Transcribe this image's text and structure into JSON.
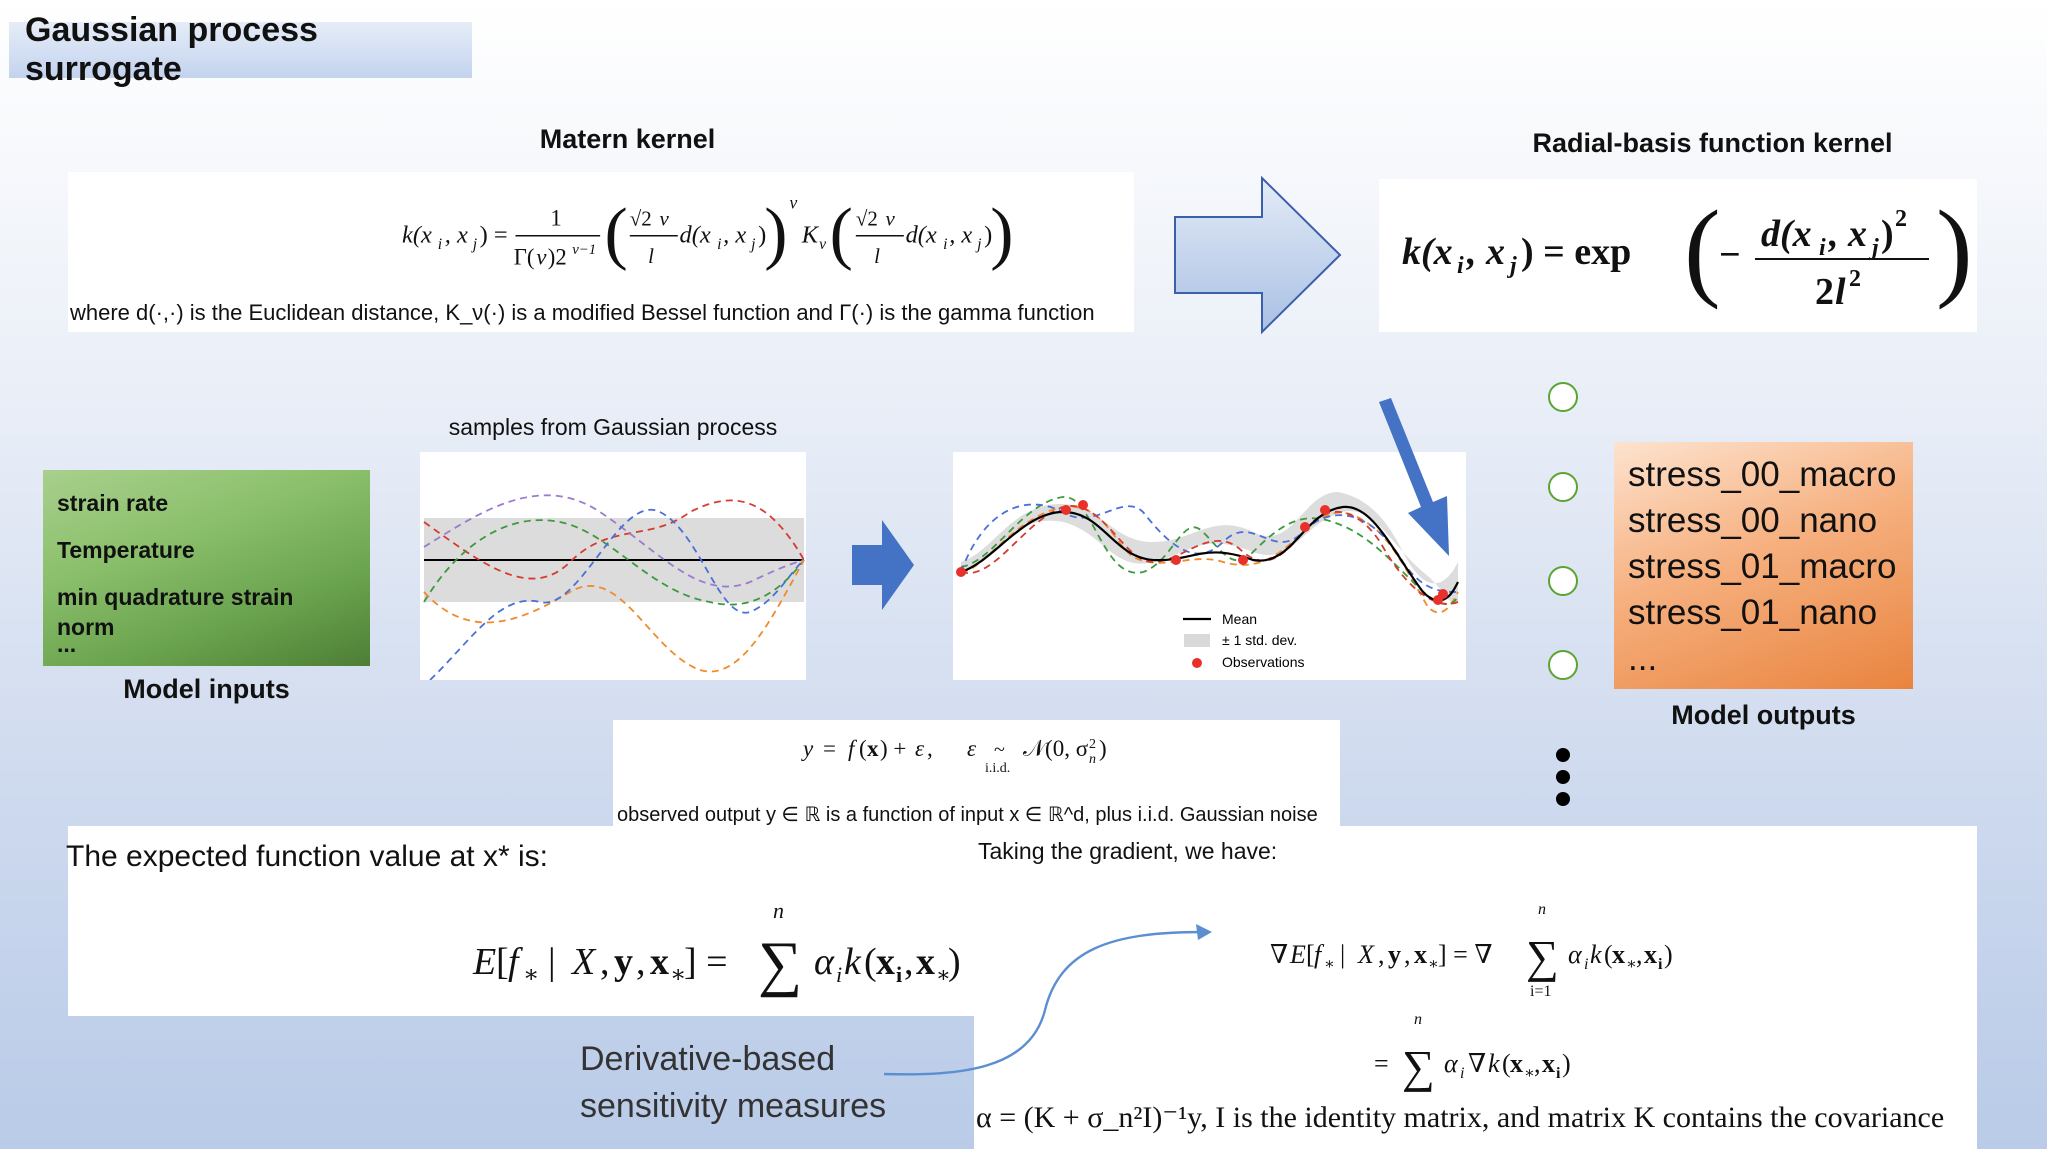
{
  "title": "Gaussian process surrogate",
  "matern": {
    "heading": "Matern kernel",
    "formula": "k(x_i, x_j) = 1/(Γ(ν)2^(ν−1)) (√(2ν)/l d(x_i, x_j))^ν K_ν(√(2ν)/l d(x_i, x_j))",
    "note": "where d(·,·) is the Euclidean distance, K_ν(·) is a modified Bessel function and Γ(·) is the gamma function"
  },
  "rbf": {
    "heading": "Radial-basis function kernel",
    "formula": "k(x_i, x_j) = exp(−d(x_i, x_j)^2 / 2l^2)"
  },
  "gp_samples": {
    "caption": "samples from Gaussian process"
  },
  "posterior_plot": {
    "legend": [
      "Mean",
      "± 1 std. dev.",
      "Observations"
    ],
    "colors": {
      "mean": "#000000",
      "band": "#d9d9d9",
      "observations": "#e8312a"
    }
  },
  "inputs": {
    "items": [
      "strain rate",
      "Temperature",
      "min quadrature strain norm",
      "..."
    ],
    "label": "Model inputs"
  },
  "outputs": {
    "items": [
      "stress_00_macro",
      "stress_00_nano",
      "stress_01_macro",
      "stress_01_nano",
      "..."
    ],
    "label": "Model outputs"
  },
  "noise_model": {
    "formula": "y = f(x) + ε,   ε ~i.i.d. 𝒩(0, σ_n²)",
    "iid_label": "i.i.d.",
    "caption": "observed output y ∈ ℝ is a function of input x ∈ ℝ^d, plus i.i.d. Gaussian noise"
  },
  "expectation": {
    "intro": "The expected function value at x* is:",
    "formula": "E[f* | X, y, x*] = Σ αᵢ k(xᵢ, x*)"
  },
  "gradient": {
    "intro": "Taking the gradient, we have:",
    "formula1": "∇E[f* | X, y, x*] = ∇ Σ αᵢ k(x*, xᵢ)",
    "formula2": "= Σ αᵢ ∇k(x*, xᵢ)",
    "sum_top": "n",
    "sum_bottom": "i=1",
    "alpha_note": "α = (K + σ_n²I)⁻¹y, I is the identity matrix, and matrix K contains the covariance"
  },
  "sensitivity_label": [
    "Derivative-based",
    "sensitivity measures"
  ],
  "colors": {
    "arrow_fill_light": "#e3ebf7",
    "arrow_fill_dark": "#a9c0e4",
    "arrow_stroke": "#3b5fa8",
    "block_arrow": "#4472c4",
    "node_border": "#5aa532"
  }
}
